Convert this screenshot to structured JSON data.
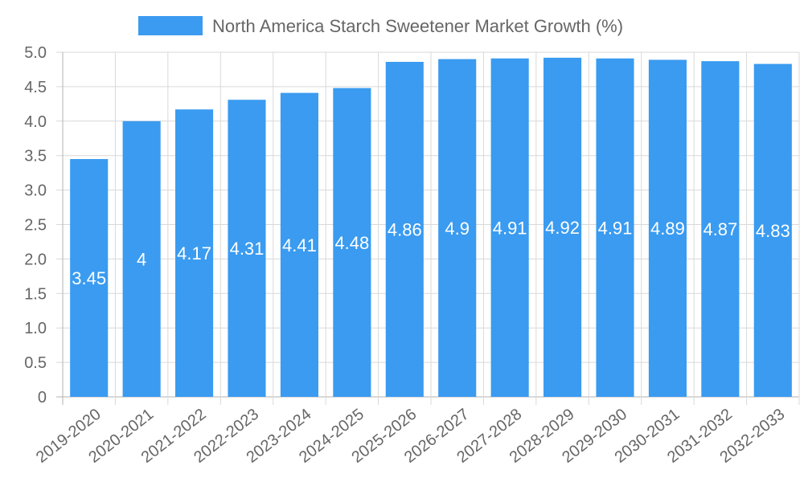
{
  "chart_data": {
    "type": "bar",
    "title": "",
    "xlabel": "",
    "ylabel": "",
    "ylim": [
      0,
      5
    ],
    "yticks": [
      "0",
      "0.5",
      "1.0",
      "1.5",
      "2.0",
      "2.5",
      "3.0",
      "3.5",
      "4.0",
      "4.5",
      "5.0"
    ],
    "grid": true,
    "legend_position": "top",
    "categories": [
      "2019-2020",
      "2020-2021",
      "2021-2022",
      "2022-2023",
      "2023-2024",
      "2024-2025",
      "2025-2026",
      "2026-2027",
      "2027-2028",
      "2028-2029",
      "2029-2030",
      "2030-2031",
      "2031-2032",
      "2032-2033"
    ],
    "series": [
      {
        "name": "North America Starch Sweetener Market Growth (%)",
        "color": "#3a9bf0",
        "values": [
          3.45,
          4,
          4.17,
          4.31,
          4.41,
          4.48,
          4.86,
          4.9,
          4.91,
          4.92,
          4.91,
          4.89,
          4.87,
          4.83
        ],
        "labels": [
          "3.45",
          "4",
          "4.17",
          "4.31",
          "4.41",
          "4.48",
          "4.86",
          "4.9",
          "4.91",
          "4.92",
          "4.91",
          "4.89",
          "4.87",
          "4.83"
        ]
      }
    ]
  }
}
